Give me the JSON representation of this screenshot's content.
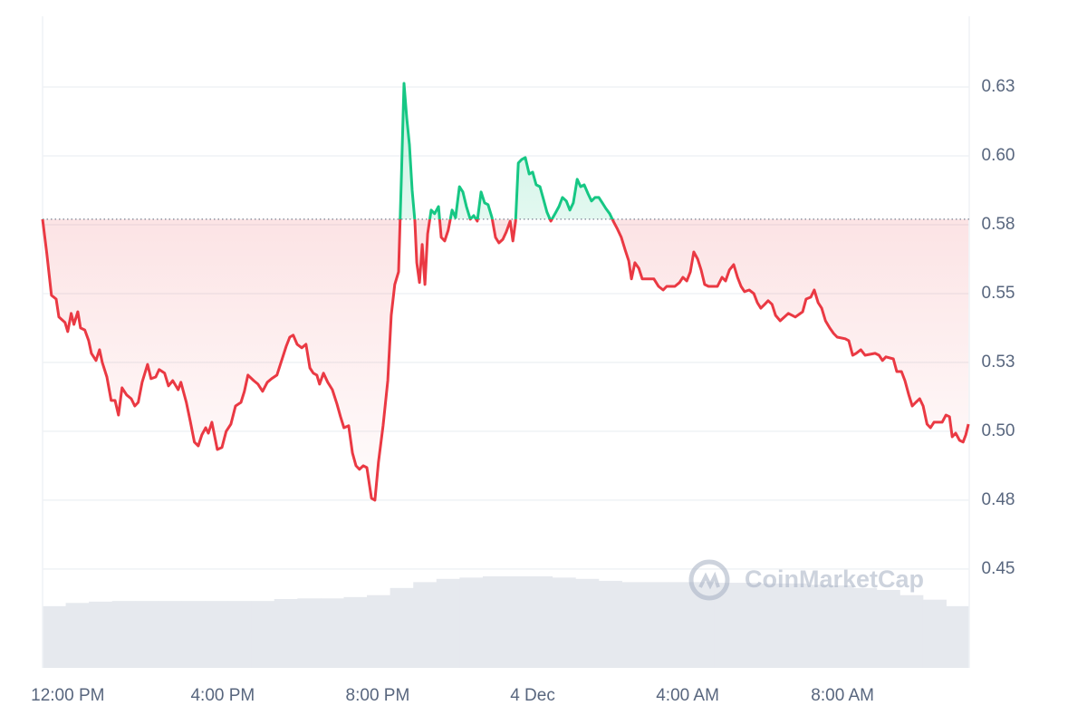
{
  "chart_data": {
    "type": "line",
    "x": [
      11.35,
      11.46,
      11.58,
      11.7,
      11.77,
      11.93,
      12.0,
      12.09,
      12.16,
      12.26,
      12.33,
      12.44,
      12.54,
      12.61,
      12.73,
      12.82,
      12.89,
      13.01,
      13.12,
      13.22,
      13.31,
      13.4,
      13.52,
      13.64,
      13.73,
      13.82,
      13.92,
      14.06,
      14.15,
      14.27,
      14.36,
      14.5,
      14.6,
      14.71,
      14.85,
      14.92,
      15.06,
      15.16,
      15.27,
      15.37,
      15.46,
      15.56,
      15.63,
      15.72,
      15.86,
      15.98,
      16.09,
      16.21,
      16.33,
      16.47,
      16.56,
      16.65,
      16.8,
      16.91,
      17.03,
      17.15,
      17.26,
      17.4,
      17.52,
      17.64,
      17.73,
      17.82,
      17.92,
      18.04,
      18.15,
      18.25,
      18.34,
      18.43,
      18.5,
      18.6,
      18.71,
      18.83,
      18.95,
      19.04,
      19.13,
      19.25,
      19.35,
      19.44,
      19.53,
      19.63,
      19.72,
      19.84,
      19.93,
      20.02,
      20.14,
      20.26,
      20.35,
      20.44,
      20.54,
      20.61,
      20.68,
      20.75,
      20.82,
      20.89,
      20.96,
      21.01,
      21.08,
      21.15,
      21.22,
      21.29,
      21.38,
      21.47,
      21.57,
      21.64,
      21.73,
      21.82,
      21.92,
      22.01,
      22.11,
      22.2,
      22.29,
      22.39,
      22.48,
      22.57,
      22.67,
      22.76,
      22.85,
      22.95,
      23.04,
      23.13,
      23.23,
      23.32,
      23.42,
      23.49,
      23.56,
      23.63,
      23.72,
      23.81,
      23.91,
      24.0,
      24.09,
      24.19,
      24.28,
      24.37,
      24.47,
      24.58,
      24.68,
      24.77,
      24.87,
      24.96,
      25.05,
      25.15,
      25.24,
      25.33,
      25.43,
      25.52,
      25.61,
      25.71,
      25.8,
      25.89,
      25.99,
      26.08,
      26.18,
      26.29,
      26.39,
      26.48,
      26.55,
      26.64,
      26.74,
      26.83,
      27.02,
      27.13,
      27.25,
      27.37,
      27.46,
      27.67,
      27.79,
      27.88,
      27.98,
      28.07,
      28.16,
      28.26,
      28.35,
      28.44,
      28.54,
      28.77,
      28.89,
      28.98,
      29.08,
      29.19,
      29.29,
      29.38,
      29.47,
      29.59,
      29.71,
      29.8,
      29.89,
      29.99,
      30.08,
      30.18,
      30.27,
      30.39,
      30.5,
      30.6,
      30.78,
      30.97,
      31.06,
      31.18,
      31.27,
      31.37,
      31.46,
      31.56,
      31.67,
      31.77,
      31.86,
      32.07,
      32.16,
      32.26,
      32.35,
      32.47,
      32.58,
      32.84,
      32.94,
      33.03,
      33.12,
      33.31,
      33.4,
      33.52,
      33.61,
      33.71,
      33.8,
      33.89,
      33.99,
      34.08,
      34.18,
      34.27,
      34.36,
      34.57,
      34.67,
      34.76,
      34.83,
      34.92,
      35.02,
      35.11,
      35.18,
      35.25
    ],
    "values": [
      0.577,
      0.5645,
      0.5494,
      0.548,
      0.5415,
      0.5395,
      0.5362,
      0.5428,
      0.5388,
      0.5434,
      0.5375,
      0.5368,
      0.5329,
      0.5283,
      0.5257,
      0.5296,
      0.525,
      0.5197,
      0.5112,
      0.5112,
      0.5059,
      0.5158,
      0.5132,
      0.5118,
      0.5092,
      0.5105,
      0.5178,
      0.5243,
      0.5191,
      0.5197,
      0.5224,
      0.5211,
      0.5165,
      0.5184,
      0.5151,
      0.5178,
      0.5105,
      0.5039,
      0.4961,
      0.4947,
      0.4987,
      0.5013,
      0.4993,
      0.5033,
      0.4934,
      0.4941,
      0.5,
      0.5026,
      0.5092,
      0.5105,
      0.5145,
      0.5204,
      0.5184,
      0.5171,
      0.5145,
      0.5178,
      0.5191,
      0.5204,
      0.5257,
      0.5309,
      0.5342,
      0.5349,
      0.5316,
      0.5303,
      0.5316,
      0.523,
      0.5211,
      0.5204,
      0.5171,
      0.5211,
      0.5178,
      0.5151,
      0.5099,
      0.5053,
      0.5013,
      0.502,
      0.4921,
      0.4875,
      0.4862,
      0.4875,
      0.4868,
      0.4757,
      0.475,
      0.4888,
      0.502,
      0.5184,
      0.5421,
      0.5533,
      0.5579,
      0.5908,
      0.6263,
      0.6138,
      0.604,
      0.5875,
      0.5763,
      0.5612,
      0.554,
      0.5678,
      0.5533,
      0.5717,
      0.5803,
      0.579,
      0.5816,
      0.5704,
      0.5691,
      0.573,
      0.5803,
      0.5776,
      0.5888,
      0.5869,
      0.5816,
      0.577,
      0.5783,
      0.5763,
      0.5869,
      0.5829,
      0.5823,
      0.5776,
      0.5704,
      0.5684,
      0.5697,
      0.5724,
      0.5763,
      0.5691,
      0.5763,
      0.5974,
      0.5987,
      0.5994,
      0.5934,
      0.5941,
      0.5895,
      0.5888,
      0.5842,
      0.5796,
      0.5763,
      0.579,
      0.5816,
      0.5849,
      0.5836,
      0.5803,
      0.5829,
      0.5915,
      0.5888,
      0.5895,
      0.5862,
      0.5836,
      0.5849,
      0.5849,
      0.5829,
      0.5809,
      0.579,
      0.5763,
      0.5737,
      0.5704,
      0.5658,
      0.5619,
      0.5553,
      0.5612,
      0.5592,
      0.5553,
      0.5553,
      0.5553,
      0.5526,
      0.5513,
      0.5526,
      0.5526,
      0.554,
      0.5559,
      0.5546,
      0.5579,
      0.5651,
      0.5625,
      0.5586,
      0.5533,
      0.5526,
      0.5526,
      0.5559,
      0.5546,
      0.5586,
      0.5605,
      0.5559,
      0.5526,
      0.5507,
      0.5513,
      0.55,
      0.5467,
      0.5447,
      0.5461,
      0.5474,
      0.5461,
      0.5421,
      0.5401,
      0.5415,
      0.5428,
      0.5415,
      0.5434,
      0.548,
      0.5487,
      0.5513,
      0.5467,
      0.5447,
      0.5401,
      0.5375,
      0.5355,
      0.5342,
      0.5336,
      0.5329,
      0.5276,
      0.5283,
      0.5296,
      0.5276,
      0.5283,
      0.5276,
      0.5257,
      0.527,
      0.5263,
      0.5217,
      0.5217,
      0.5184,
      0.5132,
      0.5092,
      0.5105,
      0.5118,
      0.5092,
      0.5026,
      0.5013,
      0.5033,
      0.5033,
      0.5059,
      0.5053,
      0.498,
      0.4993,
      0.4967,
      0.4961,
      0.4987,
      0.5026
    ],
    "baseline": 0.577,
    "color_above": "#16c784",
    "color_below": "#ea3943",
    "xlim": [
      11.35,
      35.27
    ],
    "xticks": [
      {
        "value": 12,
        "label": "12:00 PM"
      },
      {
        "value": 16,
        "label": "4:00 PM"
      },
      {
        "value": 20,
        "label": "8:00 PM"
      },
      {
        "value": 24,
        "label": "4 Dec"
      },
      {
        "value": 28,
        "label": "4:00 AM"
      },
      {
        "value": 32,
        "label": "8:00 AM"
      }
    ],
    "ylim": [
      0.4141,
      0.65
    ],
    "yticks": [
      0.45,
      {
        "value": 0.475,
        "label": "0.48"
      },
      {
        "value": 0.5,
        "label": "0.50"
      },
      {
        "value": 0.525,
        "label": "0.53"
      },
      {
        "value": 0.55,
        "label": "0.55"
      },
      {
        "value": 0.575,
        "label": "0.58"
      },
      {
        "value": 0.6,
        "label": "0.60"
      },
      {
        "value": 0.625,
        "label": "0.63"
      }
    ],
    "grid": true,
    "volume": {
      "color": "#e6e9ee",
      "y2lim": [
        0,
        100
      ],
      "values": [
        9.5,
        10.0,
        10.2,
        10.3,
        10.3,
        10.3,
        10.3,
        10.3,
        10.3,
        10.3,
        10.6,
        10.7,
        10.7,
        10.9,
        11.2,
        12.3,
        13.2,
        13.7,
        13.9,
        14.1,
        14.1,
        14.1,
        13.9,
        13.7,
        13.4,
        13.2,
        13.2,
        13.2,
        13.2,
        13.1,
        13.1,
        13.0,
        13.0,
        12.8,
        12.7,
        12.3,
        12.0,
        11.2,
        10.5,
        9.5
      ]
    },
    "watermark": "CoinMarketCap"
  }
}
